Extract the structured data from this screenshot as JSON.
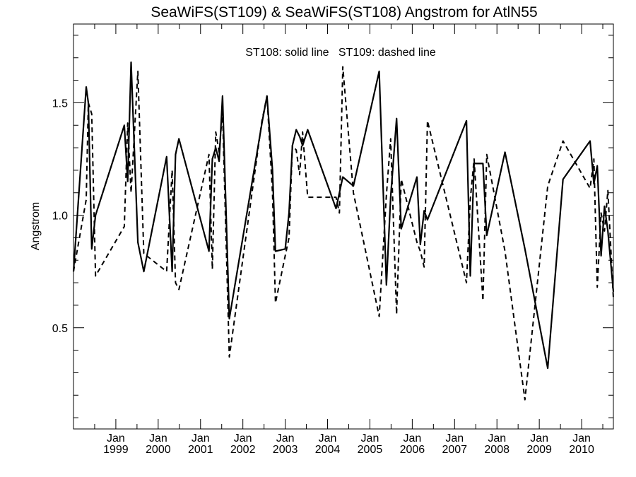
{
  "chart_data": {
    "type": "line",
    "title": "SeaWiFS(ST109) & SeaWiFS(ST108)  Angstrom for AtlN55",
    "annotation": "ST108: solid line   ST109: dashed line",
    "xlabel": "",
    "ylabel": "Angstrom",
    "xlim": [
      1998.0,
      2010.75
    ],
    "ylim": [
      0.05,
      1.85
    ],
    "grid": false,
    "legend": "none",
    "y_ticks": [
      {
        "value": 0.5,
        "label": "0.5"
      },
      {
        "value": 1.0,
        "label": "1.0"
      },
      {
        "value": 1.5,
        "label": "1.5"
      }
    ],
    "x_ticks": [
      {
        "value": 1999.0,
        "month": "Jan",
        "year": "1999"
      },
      {
        "value": 2000.0,
        "month": "Jan",
        "year": "2000"
      },
      {
        "value": 2001.0,
        "month": "Jan",
        "year": "2001"
      },
      {
        "value": 2002.0,
        "month": "Jan",
        "year": "2002"
      },
      {
        "value": 2003.0,
        "month": "Jan",
        "year": "2003"
      },
      {
        "value": 2004.0,
        "month": "Jan",
        "year": "2004"
      },
      {
        "value": 2005.0,
        "month": "Jan",
        "year": "2005"
      },
      {
        "value": 2006.0,
        "month": "Jan",
        "year": "2006"
      },
      {
        "value": 2007.0,
        "month": "Jan",
        "year": "2007"
      },
      {
        "value": 2008.0,
        "month": "Jan",
        "year": "2008"
      },
      {
        "value": 2009.0,
        "month": "Jan",
        "year": "2009"
      },
      {
        "value": 2010.0,
        "month": "Jan",
        "year": "2010"
      }
    ],
    "series": [
      {
        "name": "ST108",
        "style": "solid",
        "color": "#000000",
        "x": [
          1998.0,
          1998.3,
          1998.35,
          1998.43,
          1998.52,
          1999.2,
          1999.28,
          1999.36,
          1999.52,
          1999.66,
          2000.2,
          2000.33,
          2000.41,
          2000.49,
          2001.2,
          2001.28,
          2001.36,
          2001.44,
          2001.52,
          2001.68,
          2002.45,
          2002.57,
          2002.7,
          2002.77,
          2003.0,
          2003.09,
          2003.17,
          2003.26,
          2003.34,
          2003.41,
          2003.53,
          2004.2,
          2004.28,
          2004.36,
          2004.61,
          2005.22,
          2005.39,
          2005.49,
          2005.63,
          2005.74,
          2006.11,
          2006.19,
          2006.28,
          2006.36,
          2007.28,
          2007.37,
          2007.46,
          2007.67,
          2007.76,
          2008.19,
          2008.66,
          2009.2,
          2009.56,
          2010.2,
          2010.29,
          2010.37,
          2010.46,
          2010.54,
          2010.62,
          2010.75
        ],
        "y": [
          0.75,
          1.57,
          1.5,
          0.85,
          1.0,
          1.4,
          1.15,
          1.68,
          0.88,
          0.75,
          1.26,
          0.75,
          1.27,
          1.34,
          0.84,
          1.25,
          1.3,
          1.24,
          1.53,
          0.54,
          1.41,
          1.53,
          1.2,
          0.84,
          0.85,
          1.01,
          1.31,
          1.38,
          1.35,
          1.31,
          1.38,
          1.03,
          1.1,
          1.17,
          1.13,
          1.64,
          0.69,
          1.08,
          1.43,
          0.94,
          1.17,
          0.87,
          1.02,
          0.98,
          1.42,
          0.73,
          1.23,
          1.23,
          0.91,
          1.28,
          0.85,
          0.32,
          1.16,
          1.33,
          1.14,
          1.22,
          0.82,
          1.04,
          0.93,
          0.66
        ]
      },
      {
        "name": "ST109",
        "style": "dashed",
        "color": "#000000",
        "x": [
          1998.0,
          1998.3,
          1998.35,
          1998.43,
          1998.52,
          1999.2,
          1999.28,
          1999.36,
          1999.52,
          1999.66,
          2000.2,
          2000.33,
          2000.41,
          2000.49,
          2001.2,
          2001.28,
          2001.36,
          2001.44,
          2001.52,
          2001.68,
          2002.45,
          2002.57,
          2002.7,
          2002.77,
          2003.0,
          2003.09,
          2003.17,
          2003.26,
          2003.34,
          2003.41,
          2003.53,
          2004.2,
          2004.28,
          2004.36,
          2004.61,
          2005.22,
          2005.39,
          2005.49,
          2005.63,
          2005.74,
          2006.11,
          2006.19,
          2006.28,
          2006.36,
          2007.28,
          2007.37,
          2007.46,
          2007.67,
          2007.76,
          2008.19,
          2008.66,
          2009.2,
          2009.56,
          2010.2,
          2010.29,
          2010.37,
          2010.46,
          2010.54,
          2010.62,
          2010.75
        ],
        "y": [
          0.75,
          1.07,
          1.5,
          1.45,
          0.73,
          0.95,
          1.41,
          1.1,
          1.64,
          0.83,
          0.75,
          1.2,
          0.7,
          0.67,
          1.27,
          0.76,
          1.37,
          1.28,
          1.46,
          0.37,
          1.42,
          1.53,
          1.1,
          0.61,
          0.82,
          0.9,
          1.31,
          1.29,
          1.18,
          1.37,
          1.08,
          1.08,
          1.01,
          1.66,
          1.1,
          0.55,
          1.09,
          1.34,
          0.56,
          1.16,
          0.88,
          0.84,
          0.77,
          1.42,
          0.7,
          1.07,
          1.25,
          0.62,
          1.27,
          0.84,
          0.18,
          1.13,
          1.33,
          1.12,
          1.25,
          0.68,
          1.01,
          0.93,
          1.11,
          0.63
        ]
      }
    ]
  }
}
